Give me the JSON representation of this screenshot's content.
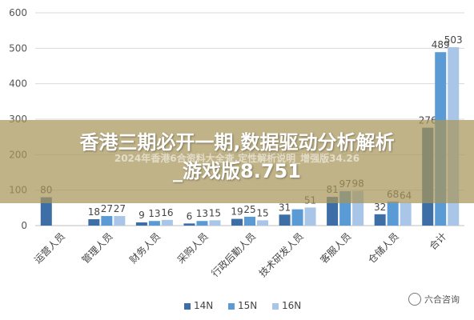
{
  "overlay": {
    "title_line1": "香港三期必开一期,数据驱动分析解析",
    "title_line2": "_游戏版8.751",
    "subtitle": "2024年香港6合资料大全查,定性解析说明_增强版34.26"
  },
  "watermark": {
    "text": "六合咨询",
    "icon": "wechat-icon"
  },
  "chart_data": {
    "type": "bar",
    "categories": [
      "运营人员",
      "管理人员",
      "财务人员",
      "采购人员",
      "行政后勤人员",
      "技术研发人员",
      "客服人员",
      "仓储人员",
      "合计"
    ],
    "series": [
      {
        "name": "14N",
        "values": [
          80,
          18,
          9,
          6,
          19,
          31,
          81,
          32,
          276
        ],
        "color": "#3d6ea5"
      },
      {
        "name": "15N",
        "values": [
          null,
          27,
          13,
          13,
          25,
          46,
          97,
          68,
          489
        ],
        "color": "#5b9bd5"
      },
      {
        "name": "16N",
        "values": [
          null,
          27,
          16,
          15,
          15,
          51,
          98,
          64,
          503
        ],
        "color": "#a9c6e8"
      }
    ],
    "data_labels": [
      [
        "80",
        "",
        ""
      ],
      [
        "18",
        "27",
        "27"
      ],
      [
        "9",
        "13",
        "16"
      ],
      [
        "6",
        "13",
        "15"
      ],
      [
        "19",
        "25",
        "15"
      ],
      [
        "31",
        "",
        "51"
      ],
      [
        "81",
        "97",
        "98"
      ],
      [
        "32",
        "68",
        "64"
      ],
      [
        "276",
        "489",
        "503"
      ]
    ],
    "yticks": [
      "0",
      "100",
      "200",
      "300",
      "400",
      "500",
      "600"
    ],
    "ylim": [
      0,
      600
    ],
    "grid": true,
    "legend_position": "bottom"
  }
}
